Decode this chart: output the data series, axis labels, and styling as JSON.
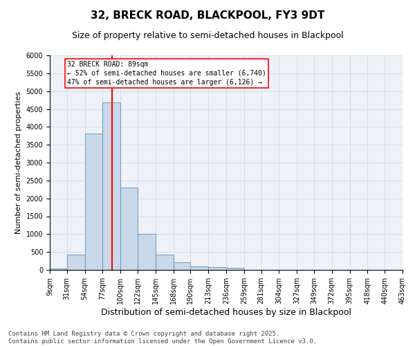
{
  "title1": "32, BRECK ROAD, BLACKPOOL, FY3 9DT",
  "title2": "Size of property relative to semi-detached houses in Blackpool",
  "xlabel": "Distribution of semi-detached houses by size in Blackpool",
  "ylabel": "Number of semi-detached properties",
  "footer1": "Contains HM Land Registry data © Crown copyright and database right 2025.",
  "footer2": "Contains public sector information licensed under the Open Government Licence v3.0.",
  "bin_edges": [
    9,
    31,
    54,
    77,
    100,
    122,
    145,
    168,
    190,
    213,
    236,
    259,
    281,
    304,
    327,
    349,
    372,
    395,
    418,
    440,
    463
  ],
  "bin_counts": [
    40,
    430,
    3820,
    4680,
    2300,
    1000,
    420,
    210,
    100,
    70,
    60,
    0,
    0,
    0,
    0,
    0,
    0,
    0,
    0,
    0
  ],
  "bar_color": "#c9d9ea",
  "bar_edge_color": "#5b8db8",
  "grid_color": "#d0d8e8",
  "background_color": "#eef2f8",
  "vline_x": 89,
  "vline_color": "red",
  "annotation_text": "32 BRECK ROAD: 89sqm\n← 52% of semi-detached houses are smaller (6,740)\n47% of semi-detached houses are larger (6,126) →",
  "annotation_box_color": "white",
  "annotation_box_edge": "red",
  "ylim": [
    0,
    6000
  ],
  "yticks": [
    0,
    500,
    1000,
    1500,
    2000,
    2500,
    3000,
    3500,
    4000,
    4500,
    5000,
    5500,
    6000
  ],
  "title1_fontsize": 11,
  "title2_fontsize": 9,
  "xlabel_fontsize": 9,
  "ylabel_fontsize": 8,
  "tick_fontsize": 7,
  "annotation_fontsize": 7,
  "footer_fontsize": 6.5
}
